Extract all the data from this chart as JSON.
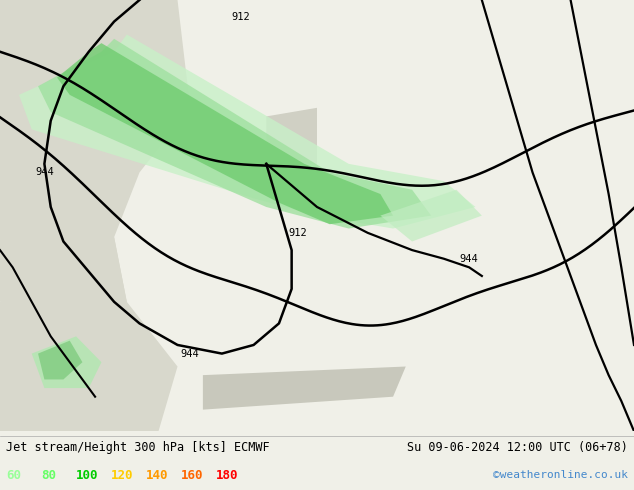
{
  "title_left": "Jet stream/Height 300 hPa [kts] ECMWF",
  "title_right": "Su 09-06-2024 12:00 UTC (06+78)",
  "credit": "©weatheronline.co.uk",
  "legend_values": [
    "60",
    "80",
    "100",
    "120",
    "140",
    "160",
    "180"
  ],
  "legend_colors": [
    "#99ff99",
    "#66ff66",
    "#00cc00",
    "#ffcc00",
    "#ff9900",
    "#ff6600",
    "#ff0000"
  ],
  "bg_color": "#f0f0e8",
  "map_land_color": "#c8e6a0",
  "bottom_bar_color": "#e8e8e8",
  "figsize": [
    6.34,
    4.9
  ],
  "dpi": 100
}
